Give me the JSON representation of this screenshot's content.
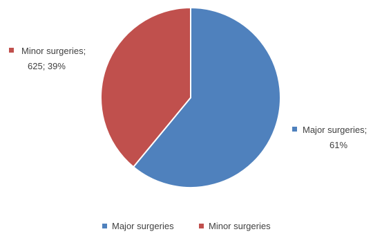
{
  "chart_data": {
    "type": "pie",
    "title": "",
    "slices": [
      {
        "name": "Major surgeries",
        "percent": 61,
        "color": "#4f81bd",
        "label_line1": "Major surgeries;",
        "label_line2": "61%"
      },
      {
        "name": "Minor surgeries",
        "value": 625,
        "percent": 39,
        "color": "#c0504d",
        "label_line1": "Minor surgeries;",
        "label_line2": "625; 39%"
      }
    ],
    "legend": {
      "placement": "bottom",
      "items": [
        "Major surgeries",
        "Minor surgeries"
      ]
    }
  }
}
